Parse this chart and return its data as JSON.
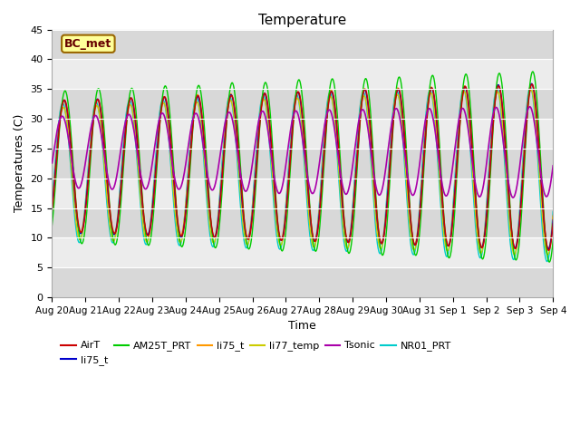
{
  "title": "Temperature",
  "xlabel": "Time",
  "ylabel": "Temperatures (C)",
  "ylim": [
    0,
    45
  ],
  "yticks": [
    0,
    5,
    10,
    15,
    20,
    25,
    30,
    35,
    40,
    45
  ],
  "annotation": "BC_met",
  "tick_labels": [
    "Aug 20",
    "Aug 21",
    "Aug 22",
    "Aug 23",
    "Aug 24",
    "Aug 25",
    "Aug 26",
    "Aug 27",
    "Aug 28",
    "Aug 29",
    "Aug 30",
    "Aug 31",
    "Sep 1",
    "Sep 2",
    "Sep 3",
    "Sep 4"
  ],
  "legend_entries": [
    {
      "label": "AirT",
      "color": "#cc0000"
    },
    {
      "label": "li75_t",
      "color": "#0000cc"
    },
    {
      "label": "AM25T_PRT",
      "color": "#00cc00"
    },
    {
      "label": "li75_t",
      "color": "#ff9900"
    },
    {
      "label": "li77_temp",
      "color": "#cccc00"
    },
    {
      "label": "Tsonic",
      "color": "#aa00aa"
    },
    {
      "label": "NR01_PRT",
      "color": "#00cccc"
    }
  ],
  "bg_light": "#ececec",
  "bg_dark": "#d8d8d8",
  "num_days": 15,
  "pts_per_day": 144
}
